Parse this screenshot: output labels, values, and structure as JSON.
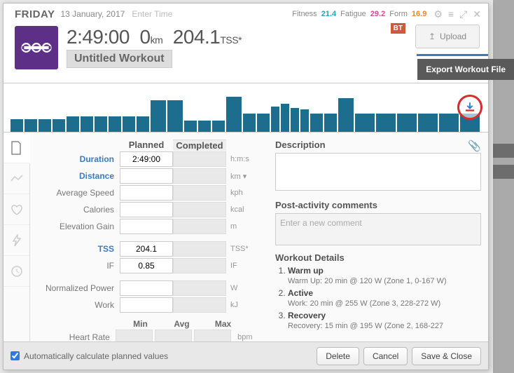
{
  "header": {
    "day": "FRIDAY",
    "date": "13 January, 2017",
    "enter_time": "Enter Time",
    "metrics": {
      "fitness_label": "Fitness",
      "fitness_value": "21.4",
      "fatigue_label": "Fatigue",
      "fatigue_value": "29.2",
      "form_label": "Form",
      "form_value": "16.9"
    },
    "duration": "2:49:00",
    "distance": "0",
    "distance_unit": "km",
    "tss_value": "204.1",
    "tss_unit": "TSS*",
    "workout_title": "Untitled Workout",
    "upload_label": "Upload",
    "bt_badge": "BT"
  },
  "tooltip": {
    "export_label": "Export Workout File"
  },
  "chart": {
    "type": "bar",
    "bar_color": "#1d6d8e",
    "background_color": "#ffffff",
    "bars": [
      {
        "w": 18,
        "h": 18
      },
      {
        "w": 18,
        "h": 18
      },
      {
        "w": 18,
        "h": 18
      },
      {
        "w": 18,
        "h": 18
      },
      {
        "w": 18,
        "h": 22
      },
      {
        "w": 18,
        "h": 22
      },
      {
        "w": 18,
        "h": 22
      },
      {
        "w": 18,
        "h": 22
      },
      {
        "w": 18,
        "h": 22
      },
      {
        "w": 18,
        "h": 22
      },
      {
        "w": 22,
        "h": 45
      },
      {
        "w": 22,
        "h": 45
      },
      {
        "w": 18,
        "h": 16
      },
      {
        "w": 18,
        "h": 16
      },
      {
        "w": 18,
        "h": 16
      },
      {
        "w": 22,
        "h": 50
      },
      {
        "w": 18,
        "h": 26
      },
      {
        "w": 18,
        "h": 26
      },
      {
        "w": 12,
        "h": 36
      },
      {
        "w": 12,
        "h": 40
      },
      {
        "w": 12,
        "h": 34
      },
      {
        "w": 12,
        "h": 32
      },
      {
        "w": 18,
        "h": 26
      },
      {
        "w": 18,
        "h": 26
      },
      {
        "w": 22,
        "h": 48
      },
      {
        "w": 28,
        "h": 26
      },
      {
        "w": 28,
        "h": 26
      },
      {
        "w": 28,
        "h": 26
      },
      {
        "w": 28,
        "h": 26
      },
      {
        "w": 28,
        "h": 26
      },
      {
        "w": 28,
        "h": 26
      }
    ]
  },
  "grid": {
    "headers": {
      "planned": "Planned",
      "completed": "Completed"
    },
    "rows": [
      {
        "label": "Duration",
        "link": true,
        "planned": "2:49:00",
        "unit": "h:m:s"
      },
      {
        "label": "Distance",
        "link": true,
        "planned": "",
        "unit": "km  ▾"
      },
      {
        "label": "Average Speed",
        "link": false,
        "planned": "",
        "unit": "kph"
      },
      {
        "label": "Calories",
        "link": false,
        "planned": "",
        "unit": "kcal"
      },
      {
        "label": "Elevation Gain",
        "link": false,
        "planned": "",
        "unit": "m"
      },
      {
        "label": "TSS",
        "link": true,
        "planned": "204.1",
        "unit": "TSS*"
      },
      {
        "label": "IF",
        "link": false,
        "planned": "0.85",
        "unit": "IF"
      },
      {
        "label": "Normalized Power",
        "link": false,
        "planned": "",
        "unit": "W"
      },
      {
        "label": "Work",
        "link": false,
        "planned": "",
        "unit": "kJ"
      }
    ],
    "summary_headers": {
      "min": "Min",
      "avg": "Avg",
      "max": "Max"
    },
    "hr_label": "Heart Rate",
    "hr_unit": "bpm"
  },
  "right": {
    "description_label": "Description",
    "post_label": "Post-activity comments",
    "post_placeholder": "Enter a new comment",
    "details_label": "Workout Details",
    "steps": [
      {
        "title": "Warm up",
        "desc": "Warm Up: 20 min @ 120 W (Zone 1, 0-167 W)"
      },
      {
        "title": "Active",
        "desc": "Work: 20 min @ 255 W (Zone 3, 228-272 W)"
      },
      {
        "title": "Recovery",
        "desc": "Recovery: 15 min @ 195 W (Zone 2, 168-227"
      }
    ]
  },
  "footer": {
    "auto_calc": "Automatically calculate planned values",
    "delete": "Delete",
    "cancel": "Cancel",
    "save_close": "Save & Close"
  },
  "colors": {
    "accent": "#3b7bbf",
    "sport": "#5e2f86",
    "highlight_ring": "#d82a2a"
  }
}
